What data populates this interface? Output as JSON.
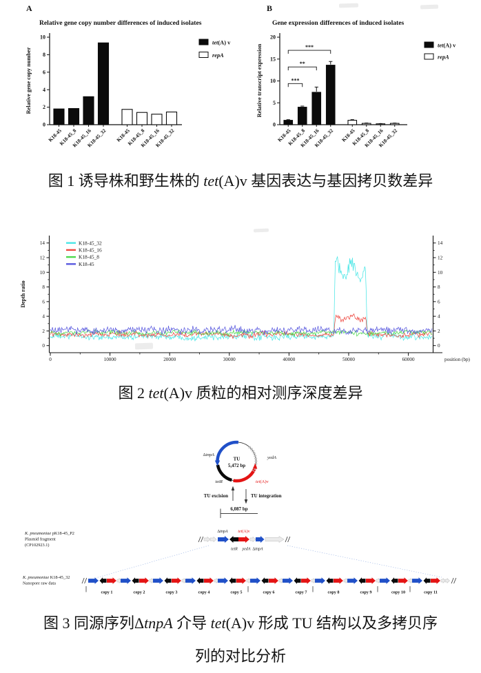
{
  "chart_data": [
    {
      "id": "gene_copy_number",
      "type": "bar",
      "panel_label": "A",
      "title": "Relative gene copy number differences of induced isolates",
      "ylabel": "Relative gene copy number",
      "ylim": [
        0,
        10
      ],
      "yticks": [
        0,
        2,
        4,
        6,
        8,
        10
      ],
      "categories": [
        "K18-45",
        "K18-45_8",
        "K18-45_16",
        "K18-45_32",
        "K18-45",
        "K18-45_8",
        "K18-45_16",
        "K18-45_32"
      ],
      "bars": [
        {
          "value": 1.8,
          "fill": "black"
        },
        {
          "value": 1.85,
          "fill": "black"
        },
        {
          "value": 3.2,
          "fill": "black"
        },
        {
          "value": 9.35,
          "fill": "black"
        },
        {
          "value": 1.75,
          "fill": "white"
        },
        {
          "value": 1.4,
          "fill": "white"
        },
        {
          "value": 1.2,
          "fill": "white"
        },
        {
          "value": 1.45,
          "fill": "white"
        }
      ],
      "legend": [
        {
          "fill": "black",
          "parts": [
            {
              "t": "tet",
              "i": true
            },
            {
              "t": "(A) v"
            }
          ]
        },
        {
          "fill": "white",
          "parts": [
            {
              "t": "repA",
              "i": true
            }
          ]
        }
      ]
    },
    {
      "id": "gene_expression",
      "type": "bar",
      "panel_label": "B",
      "title": "Gene expression differences of induced isolates",
      "ylabel": "Relative transcript expression",
      "ylim": [
        0,
        20
      ],
      "yticks": [
        0,
        5,
        10,
        15,
        20
      ],
      "categories": [
        "K18-45",
        "K18-45_8",
        "K18-45_16",
        "K18-45_32",
        "K18-45",
        "K18-45_8",
        "K18-45_16",
        "K18-45_32"
      ],
      "bars": [
        {
          "value": 1.0,
          "error": 0.15,
          "fill": "black"
        },
        {
          "value": 4.0,
          "error": 0.25,
          "fill": "black"
        },
        {
          "value": 7.4,
          "error": 1.2,
          "fill": "black"
        },
        {
          "value": 13.6,
          "error": 0.85,
          "fill": "black"
        },
        {
          "value": 1.0,
          "error": 0.15,
          "fill": "white"
        },
        {
          "value": 0.3,
          "error": 0.08,
          "fill": "white"
        },
        {
          "value": 0.2,
          "error": 0.05,
          "fill": "white"
        },
        {
          "value": 0.3,
          "error": 0.07,
          "fill": "white"
        }
      ],
      "significance": [
        {
          "from": 0,
          "to": 1,
          "label": "***",
          "y": 9.4
        },
        {
          "from": 0,
          "to": 2,
          "label": "**",
          "y": 13.2
        },
        {
          "from": 0,
          "to": 3,
          "label": "***",
          "y": 17.0
        }
      ],
      "legend": [
        {
          "fill": "black",
          "parts": [
            {
              "t": "tet",
              "i": true
            },
            {
              "t": "(A) v"
            }
          ]
        },
        {
          "fill": "white",
          "parts": [
            {
              "t": "repA",
              "i": true
            }
          ]
        }
      ]
    },
    {
      "id": "depth_ratio",
      "type": "line",
      "ylabel": "Depth ratio",
      "xlabel": "position (bp)",
      "xlim": [
        0,
        64000
      ],
      "xticks": [
        0,
        10000,
        20000,
        30000,
        40000,
        50000,
        60000
      ],
      "ylim": [
        0,
        15
      ],
      "yticks": [
        0,
        2,
        4,
        6,
        8,
        10,
        12,
        14
      ],
      "legend_position": "top-left",
      "series": [
        {
          "name": "K18-45_32",
          "color": "#49E6E6",
          "baseline": 1.2,
          "noise": 0.26,
          "amplified_region": {
            "start": 47500,
            "end": 53100,
            "mean_depth": 10.2,
            "osc": 1.15,
            "noise": 0.55,
            "range": [
              8,
              12.6
            ]
          }
        },
        {
          "name": "K18-45_16",
          "color": "#EE4840",
          "baseline": 1.5,
          "noise": 0.2,
          "amplified_region": {
            "start": 47500,
            "end": 53100,
            "mean_depth": 3.8,
            "osc": 0.25,
            "noise": 0.26,
            "range": [
              3.2,
              4.4
            ]
          }
        },
        {
          "name": "K18-45_8",
          "color": "#4CD94C",
          "baseline": 1.75,
          "noise": 0.18,
          "amplified_region": null
        },
        {
          "name": "K18-45",
          "color": "#5A5ADF",
          "baseline": 2.1,
          "noise": 0.28,
          "amplified_region": null
        }
      ]
    }
  ],
  "captions": {
    "fig1": [
      {
        "t": "图 1  诱导株和野生株的 "
      },
      {
        "t": "tet",
        "i": true
      },
      {
        "t": "(A)v 基因表达与基因拷贝数差异"
      }
    ],
    "fig2": [
      {
        "t": "图 2 "
      },
      {
        "t": "tet",
        "i": true
      },
      {
        "t": "(A)v 质粒的相对测序深度差异"
      }
    ],
    "fig3_line1": [
      {
        "t": "图 3  同源序列Δ"
      },
      {
        "t": "tnpA",
        "i": true
      },
      {
        "t": " 介导 "
      },
      {
        "t": "tet",
        "i": true
      },
      {
        "t": "(A)v 形成 TU 结构以及多拷贝序"
      }
    ],
    "fig3_line2": [
      {
        "t": "列的对比分析"
      }
    ]
  },
  "figure3": {
    "colors": {
      "blue": "#2050C8",
      "red": "#E41414",
      "black": "#0a0a0a",
      "gray": "#ebebeb",
      "gray_stroke": "#c6c6c6"
    },
    "tu": {
      "name": "TU",
      "size": "5,472 bp"
    },
    "circle_genes": {
      "left": [
        {
          "t": "Δ"
        },
        {
          "t": "tnpA",
          "i": true
        }
      ],
      "right": [
        {
          "t": "yedA",
          "i": true
        }
      ],
      "bottom_left": [
        {
          "t": "tetR",
          "i": true
        }
      ],
      "bottom_right": [
        {
          "t": "tet",
          "i": true
        },
        {
          "t": "(A)v"
        }
      ]
    },
    "tu_excision": "TU excision",
    "tu_integration": "TU integration",
    "scale_label": "6,087 bp",
    "fragment": {
      "host_lines": [
        [
          {
            "t": "K. pneumoniae ",
            "i": true
          },
          {
            "t": "pK18-45_P2"
          }
        ],
        [
          {
            "t": "Plasmid fragment"
          }
        ],
        [
          {
            "t": "(CP102923.1)"
          }
        ]
      ],
      "top_label_left": [
        {
          "t": "Δ"
        },
        {
          "t": "tnpA",
          "i": true
        }
      ],
      "top_label_right": [
        {
          "t": "tet",
          "i": true
        },
        {
          "t": "(A)v"
        }
      ],
      "bottom_labels": [
        [
          {
            "t": "tetR",
            "i": true
          }
        ],
        [
          {
            "t": "yedA",
            "i": true
          }
        ],
        [
          {
            "t": "Δ"
          },
          {
            "t": "tnpA",
            "i": true
          }
        ]
      ]
    },
    "nanopore": {
      "host_lines": [
        [
          {
            "t": "K. pneumoniae ",
            "i": true
          },
          {
            "t": "K18-45_32"
          }
        ],
        [
          {
            "t": "Nanopore raw data"
          }
        ]
      ],
      "copy_labels": [
        "copy 1",
        "copy 2",
        "copy 3",
        "copy 4",
        "copy 5",
        "copy 6",
        "copy 7",
        "copy 8",
        "copy 9",
        "copy 10",
        "copy 11"
      ],
      "read_break_units": [
        0,
        5,
        7,
        9,
        10
      ]
    }
  }
}
